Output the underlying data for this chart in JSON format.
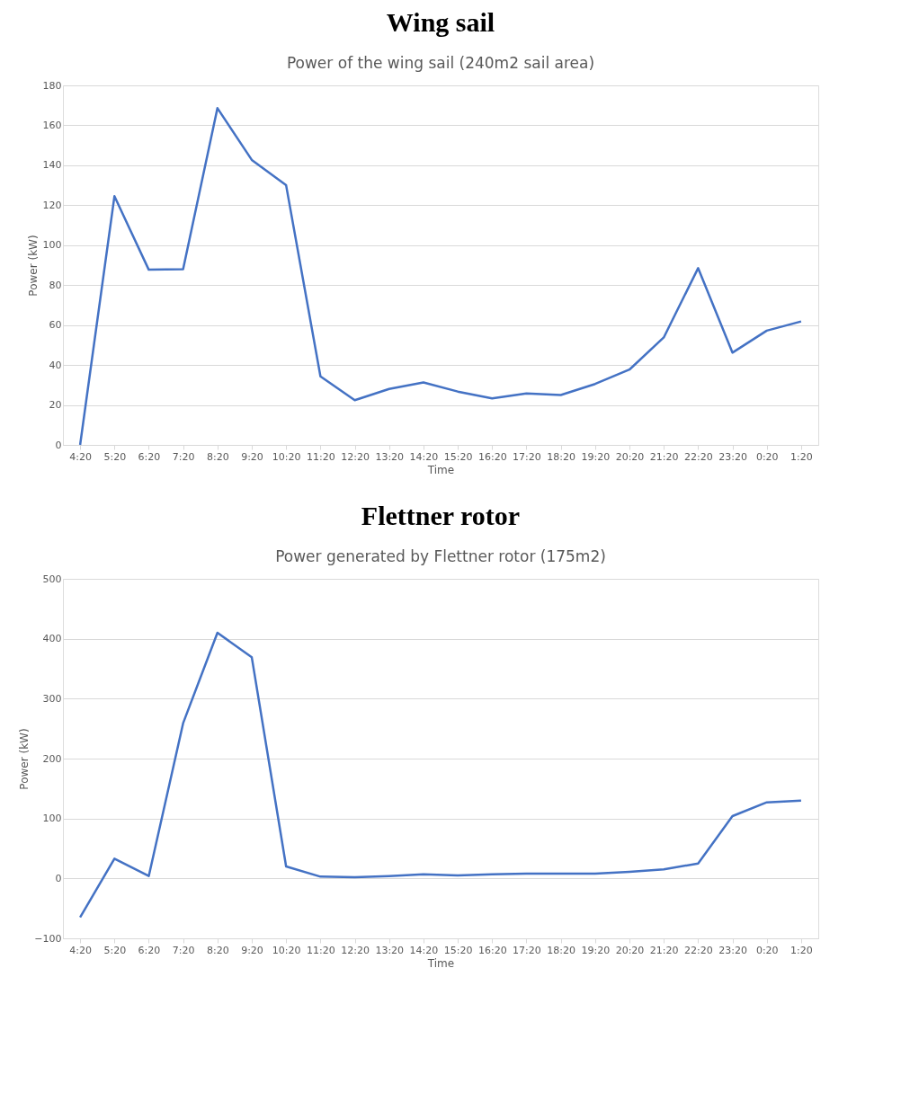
{
  "chart_data": [
    {
      "type": "line",
      "title": "Wing sail",
      "subtitle": "Power of the wing sail (240m2 sail area)",
      "xlabel": "Time",
      "ylabel": "Power (kW)",
      "categories": [
        "4:20",
        "5:20",
        "6:20",
        "7:20",
        "8:20",
        "9:20",
        "10:20",
        "11:20",
        "12:20",
        "13:20",
        "14:20",
        "15:20",
        "16:20",
        "17:20",
        "18:20",
        "19:20",
        "20:20",
        "21:20",
        "22:20",
        "23:20",
        "0:20",
        "1:20"
      ],
      "series": [
        {
          "color": "#4472c4",
          "values": [
            0,
            124.5,
            87.7,
            88,
            168.6,
            142.7,
            130,
            34.3,
            22.4,
            28,
            31.3,
            26.7,
            23.3,
            25.8,
            25,
            30.5,
            37.7,
            53.8,
            88.5,
            46.2,
            57.2,
            61.8
          ]
        }
      ],
      "ylim": [
        0,
        180
      ],
      "yticks": [
        0,
        20,
        40,
        60,
        80,
        100,
        120,
        140,
        160,
        180
      ],
      "grid": "y",
      "marker": "none",
      "line_style": "solid"
    },
    {
      "type": "line",
      "title": "Flettner rotor",
      "subtitle": "Power generated by Flettner rotor (175m2)",
      "xlabel": "Time",
      "ylabel": "Power (kW)",
      "categories": [
        "4:20",
        "5:20",
        "6:20",
        "7:20",
        "8:20",
        "9:20",
        "10:20",
        "11:20",
        "12:20",
        "13:20",
        "14:20",
        "15:20",
        "16:20",
        "17:20",
        "18:20",
        "19:20",
        "20:20",
        "21:20",
        "22:20",
        "23:20",
        "0:20",
        "1:20"
      ],
      "series": [
        {
          "color": "#4472c4",
          "values": [
            -65,
            33,
            4,
            259,
            410,
            369,
            20,
            3,
            2,
            4,
            7,
            5,
            7,
            8,
            8,
            8,
            11,
            15,
            25,
            104,
            127,
            130
          ]
        }
      ],
      "ylim": [
        -100,
        500
      ],
      "yticks": [
        -100,
        0,
        100,
        200,
        300,
        400,
        500
      ],
      "grid": "y",
      "marker": "none",
      "line_style": "solid"
    }
  ]
}
